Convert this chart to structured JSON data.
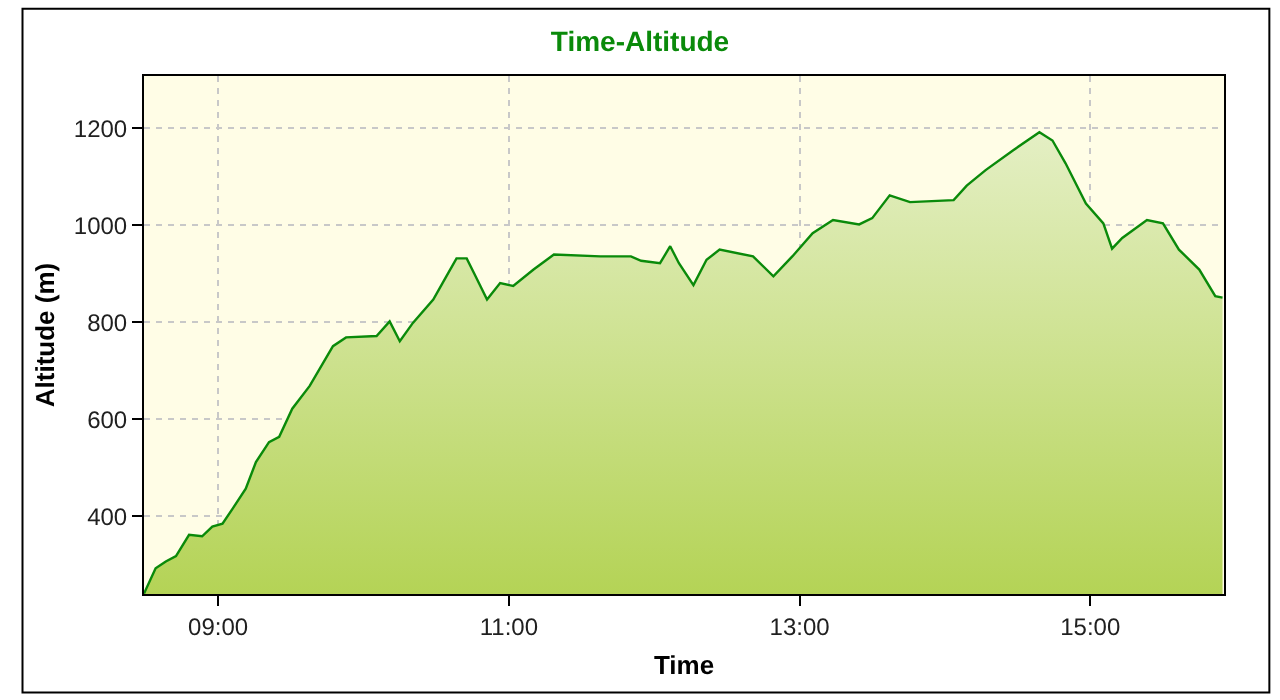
{
  "chart_data": {
    "type": "area",
    "title": "Time-Altitude",
    "xlabel": "Time",
    "ylabel": "Altitude (m)",
    "x": [
      8.49,
      8.57,
      8.64,
      8.71,
      8.8,
      8.89,
      8.96,
      9.03,
      9.1,
      9.19,
      9.26,
      9.35,
      9.42,
      9.51,
      9.63,
      9.79,
      9.88,
      10.09,
      10.18,
      10.25,
      10.34,
      10.48,
      10.57,
      10.64,
      10.71,
      10.76,
      10.85,
      10.94,
      11.03,
      11.17,
      11.31,
      11.63,
      11.84,
      11.91,
      12.04,
      12.11,
      12.17,
      12.27,
      12.36,
      12.45,
      12.68,
      12.82,
      12.95,
      13.09,
      13.23,
      13.41,
      13.5,
      13.62,
      13.76,
      14.06,
      14.15,
      14.28,
      14.47,
      14.65,
      14.74,
      14.83,
      14.97,
      15.09,
      15.15,
      15.22,
      15.39,
      15.5,
      15.61,
      15.75,
      15.86,
      15.91
    ],
    "series": [
      {
        "color": "#0a8a0a",
        "values": [
          241,
          293,
          307,
          318,
          362,
          359,
          379,
          385,
          416,
          457,
          512,
          553,
          564,
          622,
          669,
          751,
          769,
          772,
          802,
          761,
          799,
          847,
          895,
          932,
          932,
          902,
          847,
          881,
          875,
          909,
          940,
          936,
          936,
          927,
          922,
          957,
          922,
          877,
          929,
          950,
          936,
          895,
          936,
          984,
          1011,
          1002,
          1015,
          1062,
          1048,
          1052,
          1082,
          1114,
          1155,
          1192,
          1175,
          1128,
          1045,
          1004,
          952,
          974,
          1011,
          1004,
          950,
          909,
          854,
          851
        ]
      }
    ],
    "xlim": [
      8.49,
      15.92
    ],
    "xticks": [
      {
        "value": 9,
        "label": "09:00"
      },
      {
        "value": 11,
        "label": "11:00"
      },
      {
        "value": 13,
        "label": "13:00"
      },
      {
        "value": 15,
        "label": "15:00"
      }
    ],
    "ylim": [
      240,
      1308
    ],
    "yticks": [
      400,
      600,
      800,
      1000,
      1200
    ],
    "grid": true,
    "marker": "none",
    "line_style": "solid"
  }
}
